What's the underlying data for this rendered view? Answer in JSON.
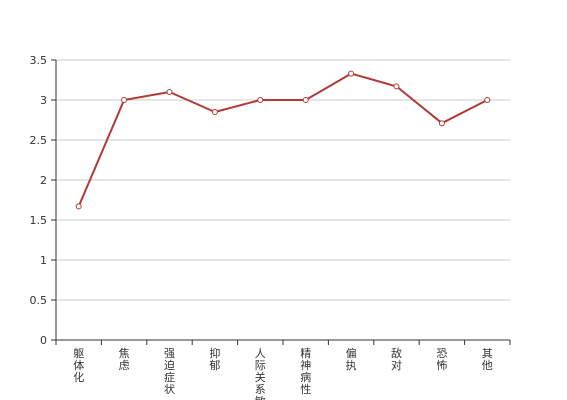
{
  "chart_data": {
    "type": "line",
    "title": "",
    "xlabel": "",
    "ylabel": "",
    "categories": [
      "躯体化",
      "焦虑",
      "强迫症状",
      "抑郁",
      "人际关系敏感",
      "精神病性",
      "偏执",
      "敌对",
      "恐怖",
      "其他"
    ],
    "series": [
      {
        "values": [
          1.67,
          3.0,
          3.1,
          2.85,
          3.0,
          3.0,
          3.33,
          3.17,
          2.71,
          3.0
        ]
      }
    ],
    "ylim": [
      0,
      3.5
    ],
    "yticks": [
      "0",
      "0.5",
      "1",
      "1.5",
      "2",
      "2.5",
      "3",
      "3.5"
    ],
    "grid": true,
    "legend": "none",
    "colors": {
      "line": "#b23a36",
      "grid": "#cccccc",
      "axis": "#333333",
      "marker_fill": "#ffffff"
    }
  }
}
